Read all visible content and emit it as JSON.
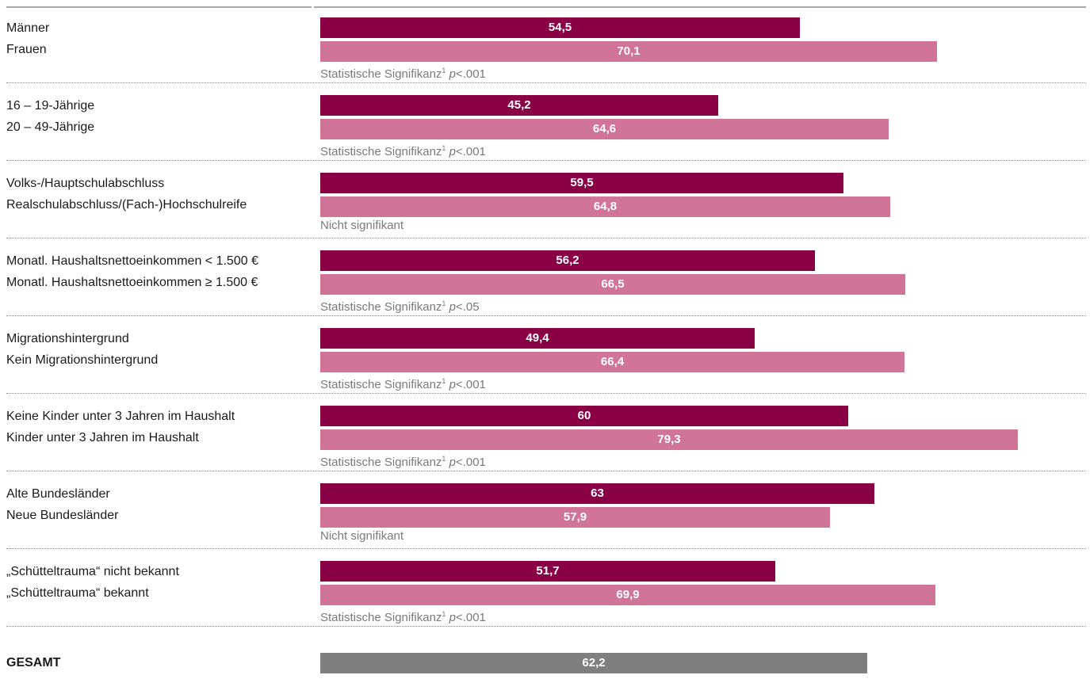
{
  "colors": {
    "primary": "#8a0045",
    "secondary": "#d07597",
    "total": "#7f7f7f"
  },
  "chart_data": {
    "type": "bar",
    "orientation": "horizontal",
    "xlim": [
      0,
      100
    ],
    "grid": false,
    "groups": [
      {
        "labels": [
          "Männer",
          "Frauen"
        ],
        "values": [
          54.5,
          70.1
        ],
        "value_labels": [
          "54,5",
          "70,1"
        ],
        "significance": {
          "text": "Statistische Signifikanz",
          "sup": "1",
          "p": "p",
          "rest": "<.001"
        }
      },
      {
        "labels": [
          "16 – 19-Jährige",
          "20 – 49-Jährige"
        ],
        "values": [
          45.2,
          64.6
        ],
        "value_labels": [
          "45,2",
          "64,6"
        ],
        "significance": {
          "text": "Statistische Signifikanz",
          "sup": "1",
          "p": "p",
          "rest": "<.001"
        }
      },
      {
        "labels": [
          "Volks-/Hauptschulabschluss",
          "Realschulabschluss/(Fach-)Hochschulreife"
        ],
        "values": [
          59.5,
          64.8
        ],
        "value_labels": [
          "59,5",
          "64,8"
        ],
        "significance": {
          "text": "Nicht signifikant"
        }
      },
      {
        "labels": [
          "Monatl. Haushaltsnettoeinkommen < 1.500 €",
          "Monatl. Haushaltsnettoeinkommen ≥ 1.500 €"
        ],
        "values": [
          56.2,
          66.5
        ],
        "value_labels": [
          "56,2",
          "66,5"
        ],
        "significance": {
          "text": "Statistische Signifikanz",
          "sup": "1",
          "p": "p",
          "rest": "<.05"
        }
      },
      {
        "labels": [
          "Migrationshintergrund",
          "Kein Migrationshintergrund"
        ],
        "values": [
          49.4,
          66.4
        ],
        "value_labels": [
          "49,4",
          "66,4"
        ],
        "significance": {
          "text": "Statistische Signifikanz",
          "sup": "1",
          "p": "p",
          "rest": "<.001"
        }
      },
      {
        "labels": [
          "Keine Kinder unter 3 Jahren im Haushalt",
          "Kinder unter 3 Jahren im Haushalt"
        ],
        "values": [
          60,
          79.3
        ],
        "value_labels": [
          "60",
          "79,3"
        ],
        "significance": {
          "text": "Statistische Signifikanz",
          "sup": "1",
          "p": "p",
          "rest": "<.001"
        }
      },
      {
        "labels": [
          "Alte Bundesländer",
          "Neue Bundesländer"
        ],
        "values": [
          63,
          57.9
        ],
        "value_labels": [
          "63",
          "57,9"
        ],
        "significance": {
          "text": "Nicht signifikant"
        }
      },
      {
        "labels": [
          "„Schütteltrauma“ nicht bekannt",
          "„Schütteltrauma“ bekannt"
        ],
        "values": [
          51.7,
          69.9
        ],
        "value_labels": [
          "51,7",
          "69,9"
        ],
        "significance": {
          "text": "Statistische Signifikanz",
          "sup": "1",
          "p": "p",
          "rest": "<.001"
        }
      }
    ],
    "total": {
      "label": "GESAMT",
      "value": 62.2,
      "value_label": "62,2"
    }
  }
}
